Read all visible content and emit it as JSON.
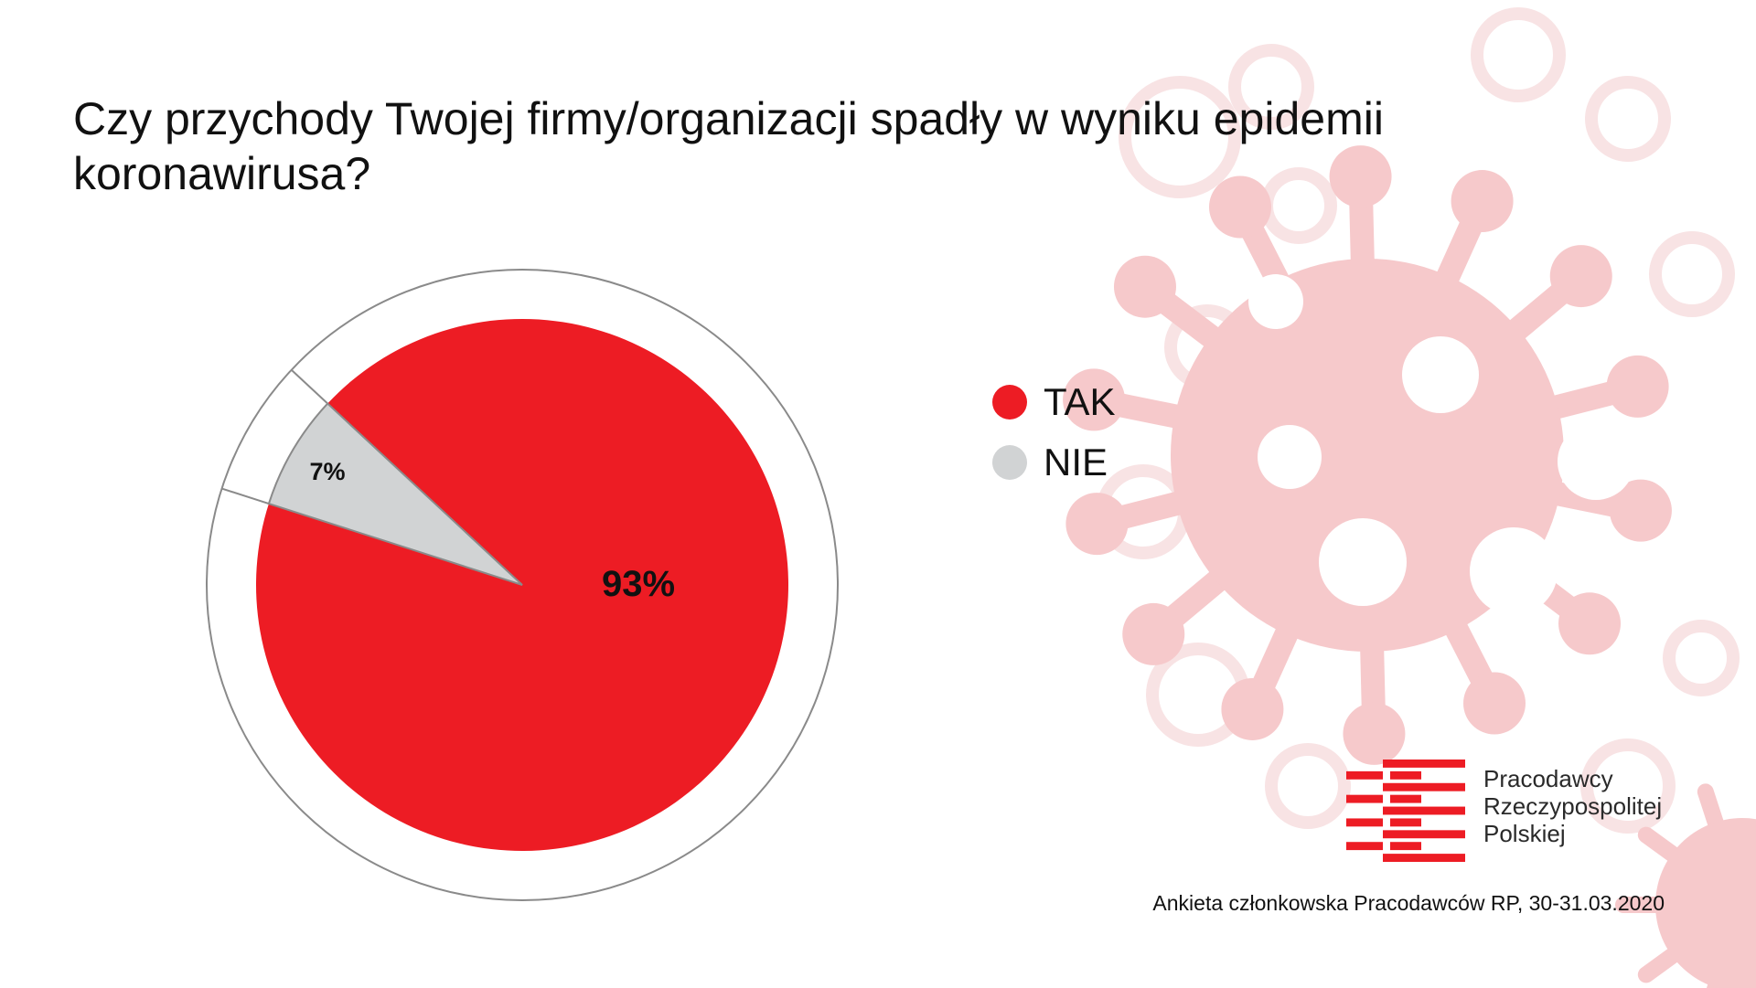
{
  "title": {
    "line1": "Czy przychody Twojej firmy/organizacji spadły w wyniku epidemii",
    "line2": "koronawirusa?"
  },
  "chart_data": {
    "type": "pie",
    "categories": [
      "TAK",
      "NIE"
    ],
    "values": [
      93,
      7
    ],
    "value_labels": [
      "93%",
      "7%"
    ],
    "colors": [
      "#ED1C24",
      "#D1D3D4"
    ],
    "legend": "right"
  },
  "legend": [
    {
      "label": "TAK",
      "color": "#ED1C24"
    },
    {
      "label": "NIE",
      "color": "#D1D3D4"
    }
  ],
  "logo": {
    "line1": "Pracodawcy",
    "line2": "Rzeczypospolitej",
    "line3": "Polskiej",
    "color": "#ED1C24"
  },
  "source": "Ankieta członkowska Pracodawców RP, 30-31.03.2020",
  "background": {
    "icon": "coronavirus-pattern-icon",
    "color": "#F6C9CB"
  }
}
